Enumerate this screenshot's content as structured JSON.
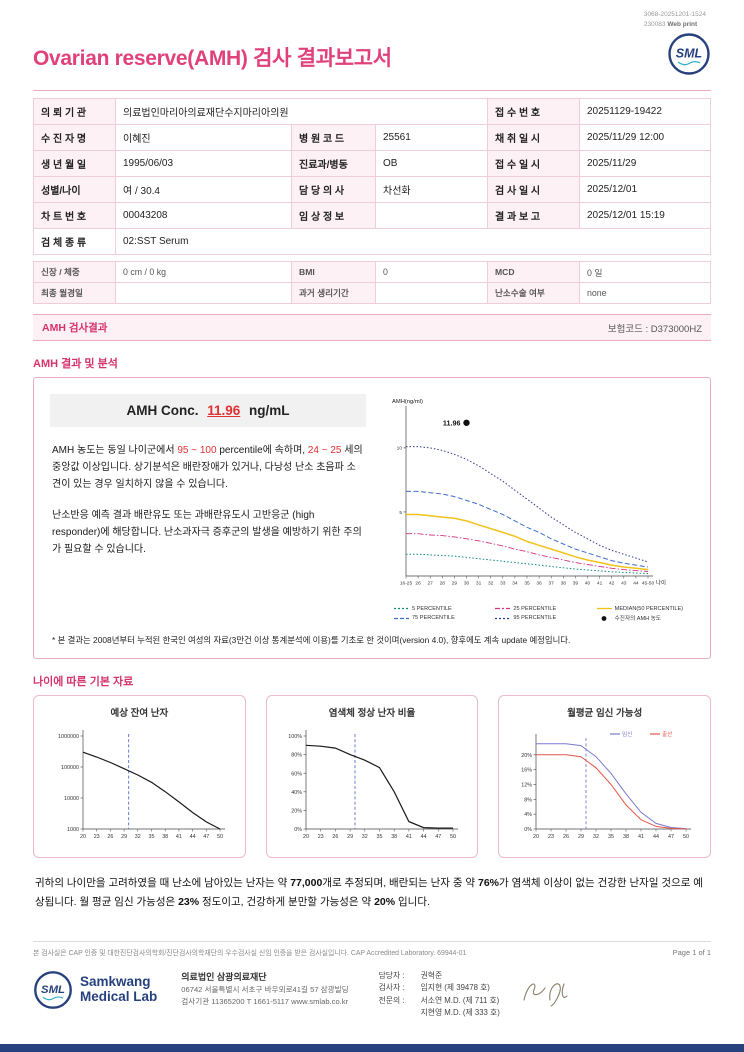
{
  "meta": {
    "print_line1": "3068-20251201-1524",
    "print_code": "230083",
    "print_type": "Web print",
    "title": "Ovarian reserve(AMH) 검사 결과보고서",
    "logo_text": "SML",
    "accent_color": "#e0417a",
    "navy_color": "#27417e"
  },
  "patient": {
    "org_label": "의 뢰 기 관",
    "org": "의료법인마리아의료재단수지마리아의원",
    "receipt_no_label": "접 수 번 호",
    "receipt_no": "20251129-19422",
    "name_label": "수 진 자 명",
    "name": "이혜진",
    "hosp_code_label": "병 원 코 드",
    "hosp_code": "25561",
    "collect_label": "채 취 일 시",
    "collect": "2025/11/29 12:00",
    "birth_label": "생 년 월 일",
    "birth": "1995/06/03",
    "dept_label": "진료과/병동",
    "dept": "OB",
    "receipt_time_label": "접 수 일 시",
    "receipt_time": "2025/11/29",
    "sexage_label": "성별/나이",
    "sexage": "여 / 30.4",
    "doctor_label": "담 당 의 사",
    "doctor": "차선화",
    "testdate_label": "검 사 일 시",
    "testdate": "2025/12/01",
    "chart_label": "차 트 번 호",
    "chart_no": "00043208",
    "clinical_label": "임 상 정 보",
    "clinical": "",
    "report_label": "결 과 보 고",
    "report": "2025/12/01 15:19",
    "specimen_label": "검 체 종 류",
    "specimen": "02:SST Serum"
  },
  "measure": {
    "height_label": "신장 / 체중",
    "height": "0 cm / 0 kg",
    "bmi_label": "BMI",
    "bmi": "0",
    "mcd_label": "MCD",
    "mcd": "0 일",
    "lmp_label": "최종 월경일",
    "lmp": "",
    "cycle_label": "과거 생리기간",
    "cycle": "",
    "surgery_label": "난소수술 여부",
    "surgery": "none"
  },
  "result_band": {
    "title": "AMH 검사결과",
    "insurance": "보험코드 : D373000HZ"
  },
  "analysis": {
    "heading": "AMH 결과 및 분석",
    "conc_label": "AMH Conc.",
    "conc_value": "11.96",
    "conc_unit": "ng/mL",
    "para1_parts": [
      "AMH 농도는 동일 나이군에서 ",
      "95 ~ 100",
      " percentile에 속하며, ",
      "24 ~ 25",
      " 세의 중앙값 이상입니다. 상기분석은 배란장애가 있거나, 다낭성 난소 초음파 소견이 있는 경우 일치하지 않을 수 있습니다."
    ],
    "para2": "난소반응 예측 결과 배란유도 또는 과배란유도시 고반응군 (high responder)에 해당합니다. 난소과자극 증후군의 발생을 예방하기 위한 주의가 필요할 수 있습니다.",
    "footnote": "* 본 결과는 2008년부터 누적된 한국인 여성의 자료(3만건 이상 통계분석에 이용)를 기초로 한 것이며(version 4.0), 향후에도 계속 update 예정입니다."
  },
  "basic": {
    "heading": "나이에 따른 기본 자료",
    "summary_parts": [
      "귀하의 나이만을 고려하였을 때 난소에 남아있는 난자는 약 ",
      "77,000",
      "개로 추정되며, 배란되는 난자 중 약 ",
      "76%",
      "가 염색체 이상이 없는 건강한 난자일 것으로 예상됩니다. 월 평균 임신 가능성은 ",
      "23%",
      " 정도이고, 건강하게 분만할 가능성은 약 ",
      "20%",
      " 입니다."
    ]
  },
  "footer": {
    "cert": "본 검사실은 CAP 인증 및 대한진단검사의학회/진단검사의학재단의 우수검사실 신임 인증을 받은 검사실입니다.  CAP Accredited Laboratory. 69944-01",
    "page": "Page 1 of 1",
    "logo_line1": "Samkwang",
    "logo_line2": "Medical Lab",
    "org_name": "의료법인 삼광의료재단",
    "address": "06742 서울특별시 서초구 바우뫼로41길 57 삼광빌딩",
    "contact": "검사기관 11365200  T 1661-5117  www.smlab.co.kr",
    "staff": [
      {
        "label": "담당자 :",
        "value": "권혁준"
      },
      {
        "label": "검사자 :",
        "value": "임지현 (제 39478 호)"
      },
      {
        "label": "전문의 :",
        "value": "서소연 M.D. (제 711 호)"
      },
      {
        "label": "",
        "value": "지현영 M.D. (제 333 호)"
      }
    ]
  },
  "chart_data": [
    {
      "type": "line",
      "title": "AMH percentile by age",
      "ylabel": "AMH(ng/ml)",
      "xlabel": "나이",
      "x_labels": [
        "16-25",
        "26",
        "27",
        "28",
        "29",
        "30",
        "31",
        "32",
        "33",
        "34",
        "35",
        "36",
        "37",
        "38",
        "39",
        "40",
        "41",
        "42",
        "43",
        "44",
        "45-50"
      ],
      "ylim": [
        0,
        12.8
      ],
      "yticks": [
        {
          "v": 5,
          "l": "5"
        },
        {
          "v": 10,
          "l": "10"
        }
      ],
      "series": [
        {
          "name": "95 PERCENTILE",
          "color": "#2b3a8f",
          "dash": "1.5,2",
          "width": 1,
          "values": [
            10.1,
            10.1,
            10.0,
            9.8,
            9.5,
            9.1,
            8.6,
            8.0,
            7.4,
            6.7,
            6.0,
            5.3,
            4.6,
            4.0,
            3.4,
            2.9,
            2.4,
            2.0,
            1.7,
            1.4,
            1.1
          ]
        },
        {
          "name": "75 PERCENTILE",
          "color": "#3f6fd0",
          "dash": "5,2.5",
          "width": 1,
          "values": [
            6.6,
            6.6,
            6.5,
            6.4,
            6.2,
            5.9,
            5.6,
            5.2,
            4.8,
            4.3,
            3.8,
            3.4,
            2.9,
            2.5,
            2.1,
            1.8,
            1.5,
            1.2,
            1.0,
            0.85,
            0.7
          ]
        },
        {
          "name": "MEDIAN(50 PERCENTILE)",
          "color": "#f2c21a",
          "dash": "",
          "width": 1.5,
          "values": [
            4.8,
            4.8,
            4.7,
            4.6,
            4.5,
            4.3,
            4.0,
            3.7,
            3.4,
            3.1,
            2.7,
            2.4,
            2.1,
            1.8,
            1.5,
            1.25,
            1.05,
            0.85,
            0.7,
            0.6,
            0.5
          ]
        },
        {
          "name": "25 PERCENTILE",
          "color": "#d63384",
          "dash": "6,2,1.5,2",
          "width": 0.9,
          "values": [
            3.3,
            3.3,
            3.2,
            3.15,
            3.05,
            2.9,
            2.75,
            2.55,
            2.35,
            2.1,
            1.9,
            1.65,
            1.45,
            1.25,
            1.05,
            0.9,
            0.75,
            0.6,
            0.5,
            0.42,
            0.35
          ]
        },
        {
          "name": "5 PERCENTILE",
          "color": "#0e8a7d",
          "dash": "1.5,2",
          "width": 1,
          "values": [
            1.7,
            1.7,
            1.65,
            1.6,
            1.55,
            1.45,
            1.35,
            1.25,
            1.15,
            1.05,
            0.95,
            0.85,
            0.74,
            0.64,
            0.55,
            0.47,
            0.4,
            0.33,
            0.28,
            0.23,
            0.19
          ]
        }
      ],
      "marker": {
        "x_index": 5,
        "value": 11.96,
        "label": "11.96"
      },
      "legend": [
        {
          "label": "5 PERCENTILE",
          "color": "#0e8a7d",
          "dash": "2,2"
        },
        {
          "label": "25 PERCENTILE",
          "color": "#d63384",
          "dash": "5,2,2,2"
        },
        {
          "label": "MEDIAN(50 PERCENTILE)",
          "color": "#f2c21a",
          "dash": ""
        },
        {
          "label": "75 PERCENTILE",
          "color": "#3f6fd0",
          "dash": "4,2"
        },
        {
          "label": "95 PERCENTILE",
          "color": "#2b3a8f",
          "dash": "2,2"
        },
        {
          "label": "수진자의 AMH 농도",
          "color": "#111111",
          "marker": "dot"
        }
      ]
    },
    {
      "type": "line",
      "title": "예상 잔여 난자",
      "yscale": "log",
      "x": [
        20,
        23,
        26,
        29,
        32,
        35,
        38,
        41,
        44,
        47,
        50
      ],
      "ylim": [
        1000,
        1000000
      ],
      "yticks": [
        {
          "v": 1000,
          "l": "1000"
        },
        {
          "v": 10000,
          "l": "10000"
        },
        {
          "v": 100000,
          "l": "100000"
        },
        {
          "v": 1000000,
          "l": "1000000"
        }
      ],
      "series": [
        {
          "name": "예상 잔여 난자",
          "color": "#1a1a1a",
          "width": 1.2,
          "values": [
            300000,
            210000,
            140000,
            88000,
            55000,
            32000,
            16000,
            7500,
            3400,
            1700,
            1000
          ]
        }
      ],
      "vline": {
        "x": 30,
        "color": "#5b6fc8"
      }
    },
    {
      "type": "line",
      "title": "염색체 정상 난자 비율",
      "x": [
        20,
        23,
        26,
        29,
        32,
        35,
        38,
        41,
        44,
        47,
        50
      ],
      "ylim": [
        0,
        100
      ],
      "yticks": [
        {
          "v": 0,
          "l": "0%"
        },
        {
          "v": 20,
          "l": "20%"
        },
        {
          "v": 40,
          "l": "40%"
        },
        {
          "v": 60,
          "l": "60%"
        },
        {
          "v": 80,
          "l": "80%"
        },
        {
          "v": 100,
          "l": "100%"
        }
      ],
      "series": [
        {
          "name": "염색체 정상 난자 비율",
          "color": "#1a1a1a",
          "width": 1.2,
          "values": [
            90,
            89,
            87,
            80,
            74,
            66,
            40,
            8,
            1.5,
            1,
            1
          ]
        }
      ],
      "vline": {
        "x": 30,
        "color": "#5b6fc8"
      }
    },
    {
      "type": "line",
      "title": "월평균 임신 가능성",
      "x": [
        20,
        23,
        26,
        29,
        32,
        35,
        38,
        41,
        44,
        47,
        50
      ],
      "ylim": [
        0,
        24
      ],
      "yticks": [
        {
          "v": 0,
          "l": "0%"
        },
        {
          "v": 4,
          "l": "4%"
        },
        {
          "v": 8,
          "l": "8%"
        },
        {
          "v": 12,
          "l": "12%"
        },
        {
          "v": 16,
          "l": "16%"
        },
        {
          "v": 20,
          "l": "20%"
        }
      ],
      "series": [
        {
          "name": "임신",
          "color": "#7a7ad0",
          "width": 1,
          "values": [
            23,
            23,
            23,
            22.5,
            19.5,
            15,
            9.5,
            4.5,
            1.5,
            0.4,
            0.1
          ]
        },
        {
          "name": "출산",
          "color": "#e2574a",
          "width": 1,
          "values": [
            20,
            20,
            20,
            19.5,
            16.5,
            12,
            6.5,
            2.5,
            0.7,
            0.15,
            0
          ]
        }
      ],
      "vline": {
        "x": 30,
        "color": "#7a7ad0"
      },
      "legend_inline": [
        {
          "label": "임신",
          "color": "#7a7ad0"
        },
        {
          "label": "출산",
          "color": "#e2574a"
        }
      ]
    }
  ]
}
